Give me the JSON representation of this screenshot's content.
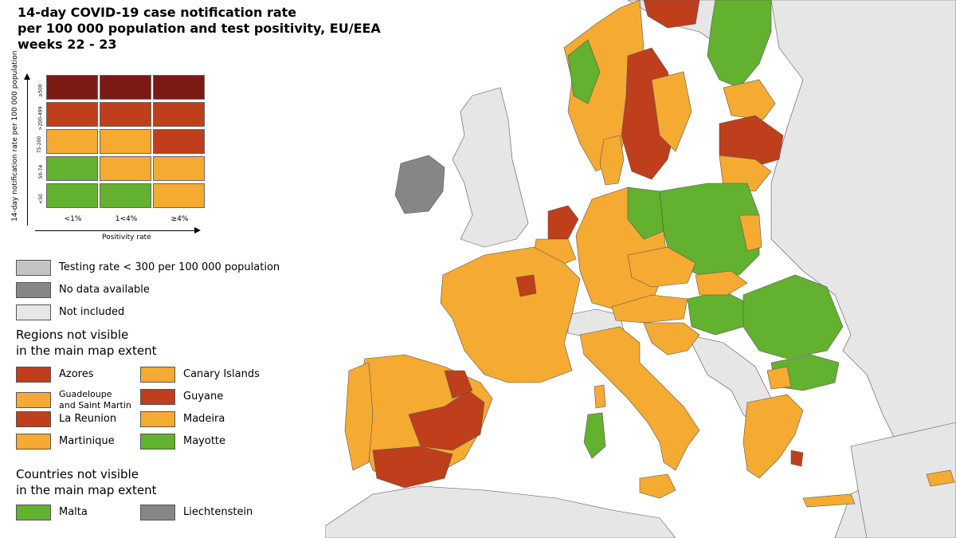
{
  "title": {
    "line1": "14-day COVID-19 case notification rate",
    "line2": "per 100 000 population and test positivity, EU/EEA",
    "line3": "weeks 22 - 23"
  },
  "matrix": {
    "y_axis_title": "14-day notification rate per 100 000 population",
    "x_axis_title": "Positivity rate",
    "y_ticks": [
      "≥500",
      ">200-499",
      "75-200",
      "50-74",
      "<50"
    ],
    "x_ticks": [
      "<1%",
      "1<4%",
      "≥4%"
    ],
    "rows": [
      [
        "#7b1a12",
        "#7b1a12",
        "#7b1a12"
      ],
      [
        "#bf3e1c",
        "#bf3e1c",
        "#bf3e1c"
      ],
      [
        "#f5aa32",
        "#f5aa32",
        "#bf3e1c"
      ],
      [
        "#62b12f",
        "#f5aa32",
        "#f5aa32"
      ],
      [
        "#62b12f",
        "#62b12f",
        "#f5aa32"
      ]
    ]
  },
  "legend": {
    "testing": {
      "label": "Testing rate < 300 per 100 000 population",
      "color": "#c4c4c4"
    },
    "no_data": {
      "label": "No data available",
      "color": "#868686"
    },
    "not_included": {
      "label": "Not included",
      "color": "#e6e6e6"
    }
  },
  "regions_section": {
    "heading_line1": "Regions not visible",
    "heading_line2": "in the main map extent",
    "items": [
      {
        "label": "Azores",
        "color": "#bf3e1c"
      },
      {
        "label": "Canary Islands",
        "color": "#f5aa32"
      },
      {
        "label": "Guadeloupe\nand Saint Martin",
        "color": "#f5aa32"
      },
      {
        "label": "Guyane",
        "color": "#bf3e1c"
      },
      {
        "label": "La Reunion",
        "color": "#bf3e1c"
      },
      {
        "label": "Madeira",
        "color": "#f5aa32"
      },
      {
        "label": "Martinique",
        "color": "#f5aa32"
      },
      {
        "label": "Mayotte",
        "color": "#62b12f"
      }
    ]
  },
  "countries_section": {
    "heading_line1": "Countries not visible",
    "heading_line2": "in the main map extent",
    "items": [
      {
        "label": "Malta",
        "color": "#62b12f"
      },
      {
        "label": "Liechtenstein",
        "color": "#868686"
      }
    ]
  },
  "colors": {
    "green": "#62b12f",
    "orange": "#f5aa32",
    "red": "#bf3e1c",
    "darkred": "#7b1a12",
    "no_data": "#868686",
    "not_included": "#e6e6e6",
    "sea": "#ffffff"
  }
}
